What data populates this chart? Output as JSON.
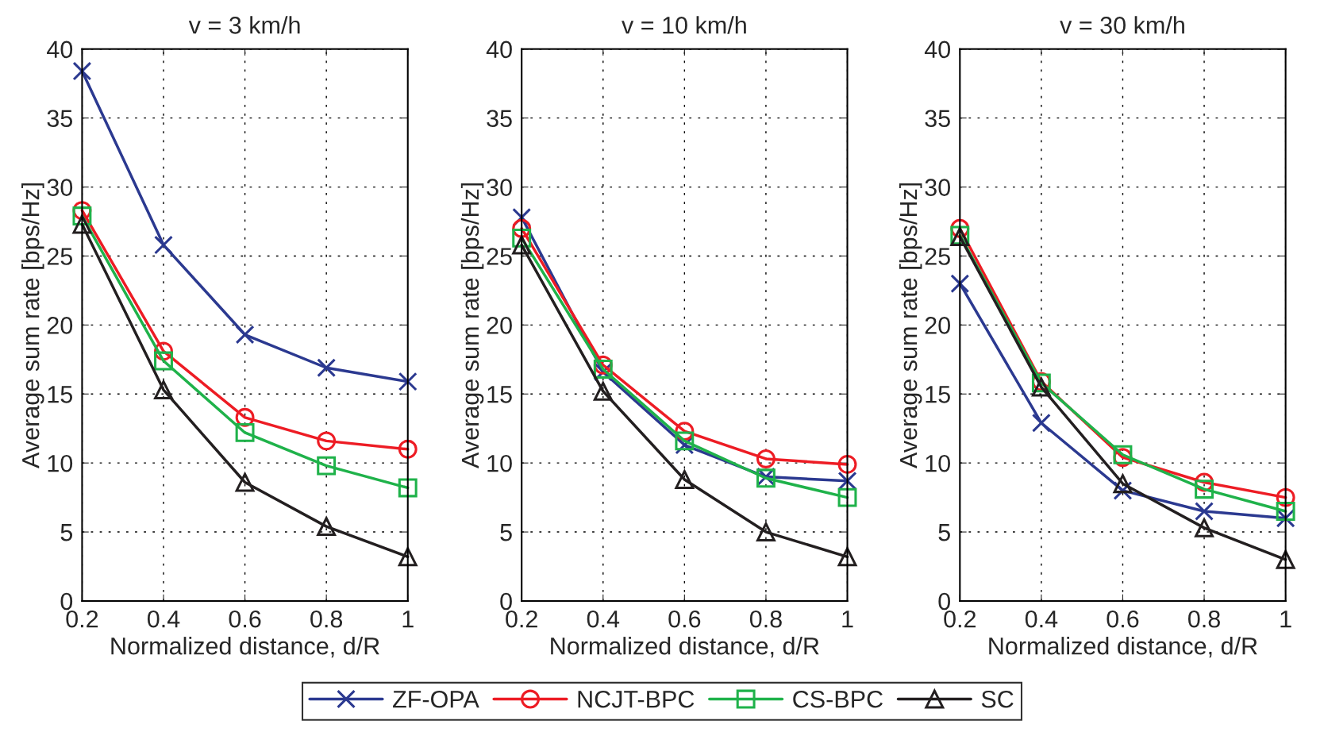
{
  "chart_data": [
    {
      "type": "line",
      "title": "v = 3 km/h",
      "xlabel": "Normalized distance, d/R",
      "ylabel": "Average sum rate [bps/Hz]",
      "x": [
        0.2,
        0.4,
        0.6,
        0.8,
        1
      ],
      "xlim": [
        0.2,
        1
      ],
      "ylim": [
        0,
        40
      ],
      "xticks": [
        0.2,
        0.4,
        0.6,
        0.8,
        1
      ],
      "yticks": [
        0,
        5,
        10,
        15,
        20,
        25,
        30,
        35,
        40
      ],
      "grid": true,
      "legend": "bottom",
      "series": [
        {
          "name": "ZF-OPA",
          "color": "#2b3990",
          "marker": "cross",
          "values": [
            38.4,
            25.8,
            19.3,
            16.9,
            15.9
          ]
        },
        {
          "name": "NCJT-BPC",
          "color": "#ed1c24",
          "marker": "circle",
          "values": [
            28.3,
            18.1,
            13.3,
            11.6,
            11.0
          ]
        },
        {
          "name": "CS-BPC",
          "color": "#1fb24a",
          "marker": "square",
          "values": [
            27.9,
            17.4,
            12.2,
            9.8,
            8.2
          ]
        },
        {
          "name": "SC",
          "color": "#231f20",
          "marker": "triangle",
          "values": [
            27.3,
            15.3,
            8.6,
            5.4,
            3.2
          ]
        }
      ]
    },
    {
      "type": "line",
      "title": "v = 10 km/h",
      "xlabel": "Normalized distance, d/R",
      "ylabel": "Average sum rate [bps/Hz]",
      "x": [
        0.2,
        0.4,
        0.6,
        0.8,
        1
      ],
      "xlim": [
        0.2,
        1
      ],
      "ylim": [
        0,
        40
      ],
      "xticks": [
        0.2,
        0.4,
        0.6,
        0.8,
        1
      ],
      "yticks": [
        0,
        5,
        10,
        15,
        20,
        25,
        30,
        35,
        40
      ],
      "grid": true,
      "series": [
        {
          "color": "#2b3990",
          "marker": "cross",
          "values": [
            27.8,
            16.6,
            11.3,
            9.0,
            8.7
          ]
        },
        {
          "color": "#ed1c24",
          "marker": "circle",
          "values": [
            27.0,
            17.1,
            12.3,
            10.3,
            9.9
          ]
        },
        {
          "color": "#1fb24a",
          "marker": "square",
          "values": [
            26.3,
            16.8,
            11.6,
            8.9,
            7.5
          ]
        },
        {
          "color": "#231f20",
          "marker": "triangle",
          "values": [
            25.8,
            15.2,
            8.8,
            5.0,
            3.2
          ]
        }
      ]
    },
    {
      "type": "line",
      "title": "v = 30 km/h",
      "xlabel": "Normalized distance, d/R",
      "ylabel": "Average sum rate [bps/Hz]",
      "x": [
        0.2,
        0.4,
        0.6,
        0.8,
        1
      ],
      "xlim": [
        0.2,
        1
      ],
      "ylim": [
        0,
        40
      ],
      "xticks": [
        0.2,
        0.4,
        0.6,
        0.8,
        1
      ],
      "yticks": [
        0,
        5,
        10,
        15,
        20,
        25,
        30,
        35,
        40
      ],
      "grid": true,
      "series": [
        {
          "color": "#2b3990",
          "marker": "cross",
          "values": [
            23.0,
            12.9,
            8.0,
            6.5,
            6.0
          ]
        },
        {
          "color": "#ed1c24",
          "marker": "circle",
          "values": [
            27.0,
            15.9,
            10.4,
            8.6,
            7.5
          ]
        },
        {
          "color": "#1fb24a",
          "marker": "square",
          "values": [
            26.5,
            15.8,
            10.6,
            8.1,
            6.5
          ]
        },
        {
          "color": "#231f20",
          "marker": "triangle",
          "values": [
            26.4,
            15.5,
            8.5,
            5.3,
            3.0
          ]
        }
      ]
    }
  ]
}
